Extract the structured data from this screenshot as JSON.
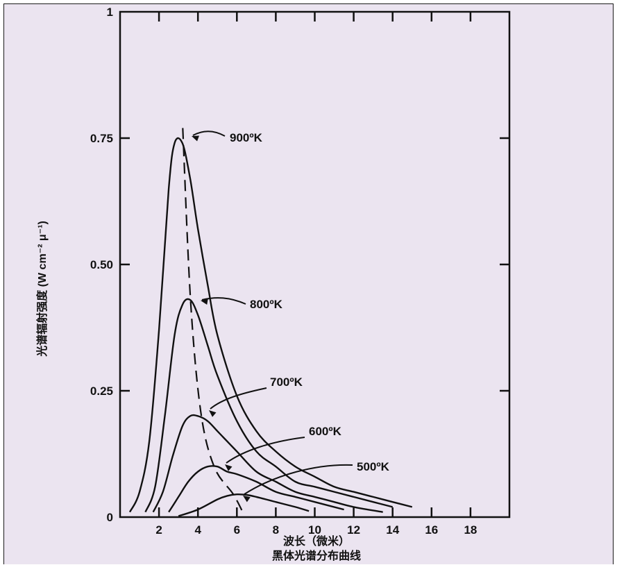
{
  "chart_data": {
    "type": "line",
    "title": "",
    "caption": "黑体光谱分布曲线",
    "xlabel": "波长（微米）",
    "ylabel": "光谱辐射强度 (W cm⁻² μ⁻¹)",
    "xlim": [
      0,
      20
    ],
    "ylim": [
      0,
      1
    ],
    "x_tick_labels": [
      "2",
      "4",
      "6",
      "8",
      "10",
      "12",
      "14",
      "16",
      "18"
    ],
    "y_tick_labels": [
      "0",
      "0.25",
      "0.50",
      "0.75",
      "1"
    ],
    "y_tick_values": [
      0,
      0.25,
      0.5,
      0.75,
      1
    ],
    "grid": false,
    "series": [
      {
        "name": "900ºK",
        "x": [
          0.5,
          1.0,
          1.5,
          2.0,
          2.5,
          2.8,
          3.2,
          3.6,
          4.0,
          4.5,
          5.0,
          6.0,
          7.0,
          8.0,
          9.0,
          10.0,
          11.0,
          12.0,
          13.0,
          14.0,
          15.0
        ],
        "values": [
          0.01,
          0.05,
          0.15,
          0.37,
          0.65,
          0.74,
          0.74,
          0.67,
          0.57,
          0.46,
          0.36,
          0.24,
          0.17,
          0.13,
          0.1,
          0.08,
          0.06,
          0.05,
          0.04,
          0.03,
          0.02
        ]
      },
      {
        "name": "800ºK",
        "x": [
          1.3,
          1.8,
          2.3,
          2.8,
          3.2,
          3.6,
          4.0,
          4.5,
          5.0,
          6.0,
          7.0,
          8.0,
          9.0,
          10.0,
          11.0,
          12.0,
          13.0,
          14.0
        ],
        "values": [
          0.01,
          0.06,
          0.2,
          0.36,
          0.42,
          0.43,
          0.4,
          0.34,
          0.28,
          0.19,
          0.13,
          0.1,
          0.07,
          0.06,
          0.05,
          0.04,
          0.03,
          0.02
        ]
      },
      {
        "name": "700ºK",
        "x": [
          1.7,
          2.2,
          2.7,
          3.2,
          3.6,
          4.0,
          4.5,
          5.0,
          5.5,
          6.0,
          7.0,
          8.0,
          9.0,
          10.0,
          11.0,
          12.0,
          13.5
        ],
        "values": [
          0.01,
          0.05,
          0.12,
          0.18,
          0.2,
          0.2,
          0.19,
          0.17,
          0.15,
          0.13,
          0.09,
          0.07,
          0.05,
          0.04,
          0.03,
          0.02,
          0.01
        ]
      },
      {
        "name": "600ºK",
        "x": [
          2.5,
          3.0,
          3.5,
          4.0,
          4.5,
          5.0,
          5.5,
          6.0,
          7.0,
          8.0,
          9.0,
          10.0,
          11.5
        ],
        "values": [
          0.01,
          0.04,
          0.07,
          0.09,
          0.1,
          0.1,
          0.09,
          0.085,
          0.07,
          0.05,
          0.04,
          0.03,
          0.015
        ]
      },
      {
        "name": "500ºK",
        "x": [
          3.0,
          4.0,
          5.0,
          5.5,
          6.0,
          6.5,
          7.0,
          8.0,
          9.0,
          9.7
        ],
        "values": [
          0.002,
          0.015,
          0.035,
          0.042,
          0.045,
          0.044,
          0.04,
          0.03,
          0.02,
          0.012
        ]
      }
    ],
    "peak_locus": {
      "x": [
        3.22,
        3.62,
        4.14,
        4.83,
        5.8,
        6.3
      ],
      "values": [
        0.77,
        0.43,
        0.21,
        0.1,
        0.046,
        0.01
      ]
    },
    "callout_labels": [
      "900ºK",
      "800ºK",
      "700ºK",
      "600ºK",
      "500ºK"
    ],
    "background_color": "#ebe4f0",
    "line_color": "#111111"
  }
}
